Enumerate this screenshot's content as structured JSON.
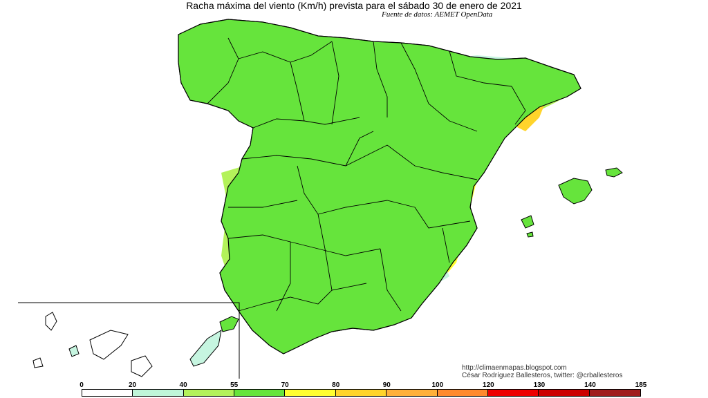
{
  "title": "Racha máxima del viento (Km/h) prevista para el sábado 30 de enero de 2021",
  "source": "Fuente de datos: AEMET OpenData",
  "credits": {
    "blog": "http://climaenmapas.blogspot.com",
    "author": "César Rodríguez Ballesteros, twitter: @crballesteros"
  },
  "legend": {
    "unit": "Km/h",
    "ticks": [
      "0",
      "20",
      "40",
      "55",
      "70",
      "80",
      "90",
      "100",
      "120",
      "130",
      "140",
      "185"
    ],
    "colors": [
      "#ffffff",
      "#bff5d8",
      "#b3f25a",
      "#66e43c",
      "#ffff30",
      "#ffd42b",
      "#ffb03a",
      "#ff8a2e",
      "#ee0000",
      "#cc0000",
      "#a01c1c"
    ]
  },
  "map_colors": {
    "calm": "#ffffff",
    "light": "#c6f5e0",
    "moderate": "#b3f25a",
    "fresh": "#66e43c",
    "strong": "#ffff30",
    "gale": "#ffd42b",
    "strong_gale": "#ffb03a",
    "storm": "#ff8a2e",
    "violent": "#ee3a1a"
  }
}
